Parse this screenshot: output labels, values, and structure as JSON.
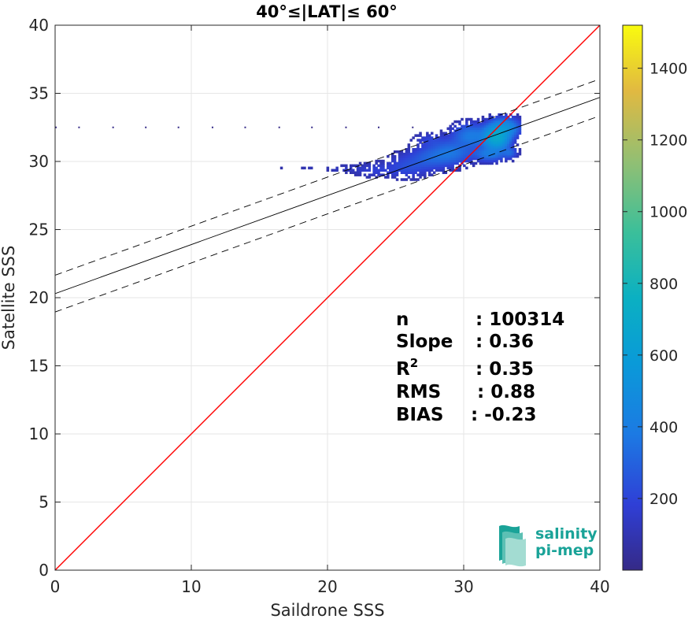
{
  "chart_data": {
    "type": "scatter",
    "title": "40°≤|LAT|≤ 60°",
    "xlabel": "Saildrone SSS",
    "ylabel": "Satellite SSS",
    "xlim": [
      0,
      40
    ],
    "ylim": [
      0,
      40
    ],
    "xticks": [
      "0",
      "10",
      "20",
      "30",
      "40"
    ],
    "yticks": [
      "0",
      "5",
      "10",
      "15",
      "20",
      "25",
      "30",
      "35",
      "40"
    ],
    "grid": true,
    "colorbar": {
      "range": [
        0,
        1520
      ],
      "ticks": [
        "200",
        "400",
        "600",
        "800",
        "1000",
        "1200",
        "1400"
      ],
      "colormap": "parula"
    },
    "identity_line": {
      "x": [
        0,
        40
      ],
      "y": [
        0,
        40
      ],
      "color": "#ff0000"
    },
    "fit_line": {
      "slope": 0.36,
      "intercept": 20.3,
      "color": "#000000"
    },
    "fit_bounds": {
      "offset": 1.35,
      "style": "dashed",
      "color": "#000000"
    },
    "density": {
      "isolated_points": [
        [
          0,
          32.5
        ],
        [
          1.7,
          32.5
        ],
        [
          4.2,
          32.5
        ],
        [
          6.6,
          32.5
        ],
        [
          9.0,
          32.5
        ],
        [
          11.5,
          32.5
        ],
        [
          13.9,
          32.5
        ],
        [
          16.4,
          32.5
        ],
        [
          18.8,
          32.5
        ],
        [
          21.3,
          32.5
        ],
        [
          23.7,
          32.5
        ],
        [
          26.2,
          32.5
        ]
      ],
      "clusters": [
        {
          "x": 16.5,
          "y": 29.5,
          "sx": 0.3,
          "sy": 0.05,
          "w": 0.2
        },
        {
          "x": 18.5,
          "y": 29.5,
          "sx": 0.6,
          "sy": 0.08,
          "w": 0.3
        },
        {
          "x": 21.0,
          "y": 29.4,
          "sx": 0.8,
          "sy": 0.15,
          "w": 0.5
        },
        {
          "x": 23.5,
          "y": 29.3,
          "sx": 1.0,
          "sy": 0.3,
          "w": 0.9
        },
        {
          "x": 25.8,
          "y": 29.6,
          "sx": 0.9,
          "sy": 0.5,
          "w": 1.5
        },
        {
          "x": 27.5,
          "y": 30.2,
          "sx": 0.9,
          "sy": 0.5,
          "w": 2.5
        },
        {
          "x": 29.0,
          "y": 30.6,
          "sx": 0.9,
          "sy": 0.5,
          "w": 4.0
        },
        {
          "x": 27.5,
          "y": 31.5,
          "sx": 0.7,
          "sy": 0.3,
          "w": 1.0
        },
        {
          "x": 30.5,
          "y": 31.8,
          "sx": 0.8,
          "sy": 0.5,
          "w": 5.0
        },
        {
          "x": 32.3,
          "y": 31.7,
          "sx": 0.5,
          "sy": 0.45,
          "w": 30.0
        },
        {
          "x": 32.9,
          "y": 32.4,
          "sx": 0.6,
          "sy": 0.4,
          "w": 10.0
        },
        {
          "x": 31.8,
          "y": 30.5,
          "sx": 0.7,
          "sy": 0.3,
          "w": 5.0
        },
        {
          "x": 33.3,
          "y": 30.6,
          "sx": 0.3,
          "sy": 0.25,
          "w": 3.0
        }
      ]
    }
  },
  "stats": [
    {
      "label": "n",
      "value": ": 100314"
    },
    {
      "label": "Slope",
      "value": ": 0.36"
    },
    {
      "label": "R",
      "sup": "2",
      "value": ": 0.35"
    },
    {
      "label": "RMS",
      "value": ": 0.88"
    },
    {
      "label": "BIAS",
      "value": ": -0.23"
    }
  ],
  "logo": {
    "line1": "salinity",
    "line2": "pi-mep"
  }
}
